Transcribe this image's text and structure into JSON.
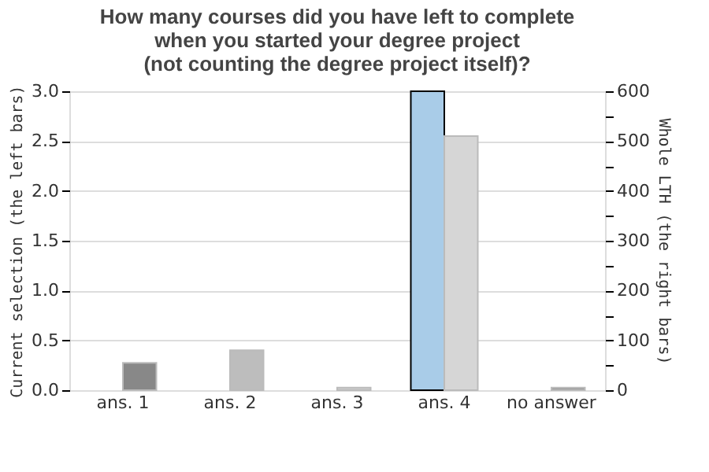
{
  "chart_data": {
    "type": "bar",
    "title": "How many courses did you have left to complete\nwhen you started your degree project\n(not counting the degree project itself)?",
    "categories": [
      "ans. 1",
      "ans. 2",
      "ans. 3",
      "ans. 4",
      "no answer"
    ],
    "series": [
      {
        "values": [
          0,
          0,
          0,
          3,
          0
        ],
        "colors": [
          "#a9cce8",
          "#a9cce8",
          "#a9cce8",
          "#a9cce8",
          "#a9cce8"
        ]
      },
      {
        "values": [
          55,
          80,
          5,
          510,
          5
        ],
        "axis": "y2",
        "colors": [
          "#888888",
          "#bdbdbd",
          "#cccccc",
          "#d6d6d6",
          "#999999"
        ]
      }
    ],
    "ylabel": "Current selection (the left bars)",
    "y2label": "Whole LTH (the right bars)",
    "ylim": [
      0,
      3
    ],
    "yticks": [
      {
        "value": 0,
        "label": "0.0"
      },
      0.5,
      {
        "value": 1,
        "label": "1.0"
      },
      1.5,
      {
        "value": 2,
        "label": "2.0"
      },
      2.5,
      {
        "value": 3,
        "label": "3.0"
      }
    ],
    "y2lim": [
      0,
      600
    ],
    "y2ticks": [
      0,
      {
        "value": 50,
        "label": null
      },
      100,
      {
        "value": 150,
        "label": null
      },
      200,
      {
        "value": 250,
        "label": null
      },
      300,
      {
        "value": 350,
        "label": null
      },
      400,
      {
        "value": 450,
        "label": null
      },
      500,
      {
        "value": 550,
        "label": null
      },
      600
    ],
    "grid": "y"
  }
}
